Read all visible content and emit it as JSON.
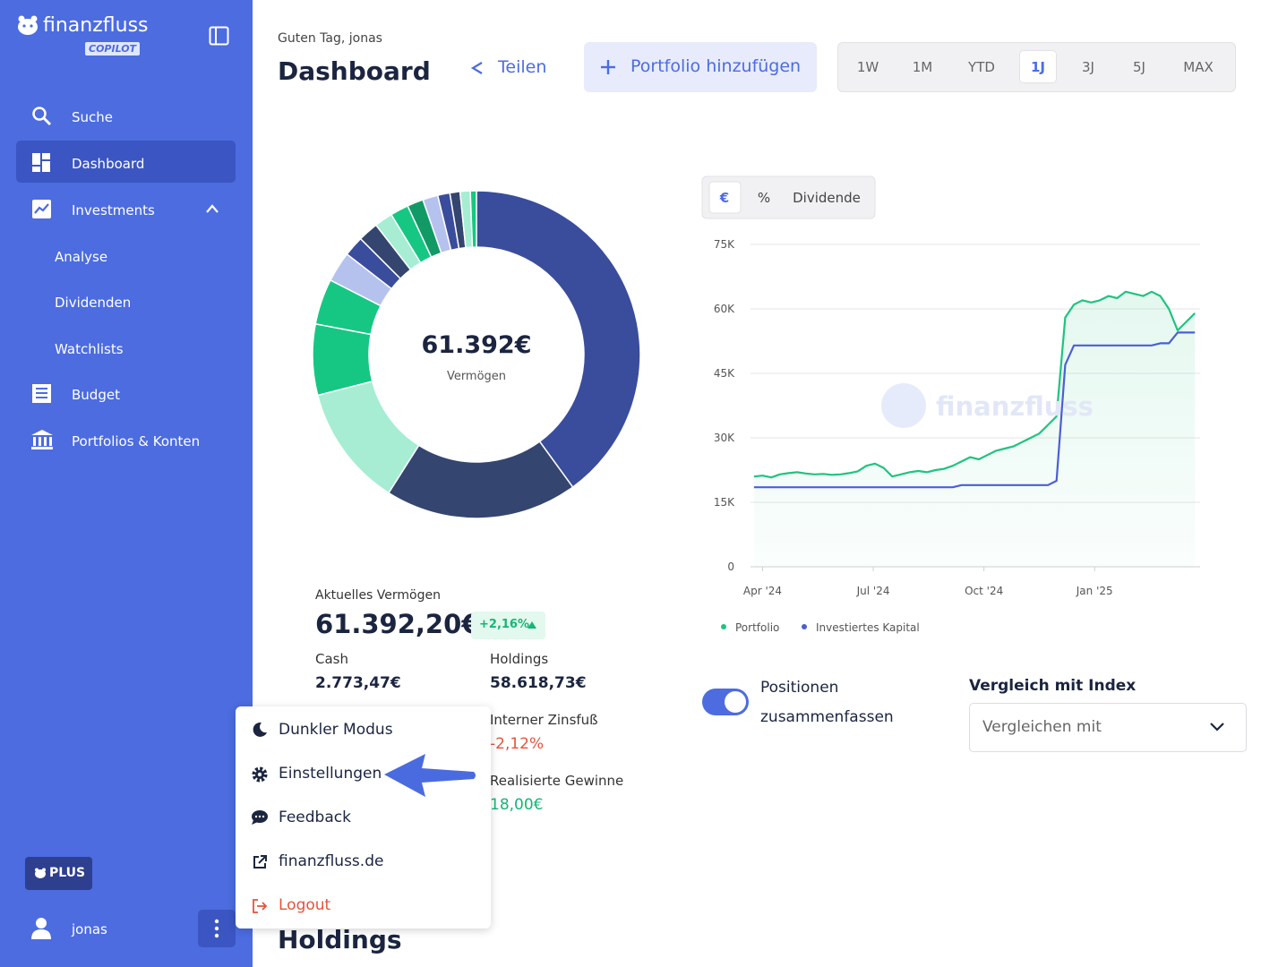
{
  "sidebar": {
    "brand": "finanzfluss",
    "badge": "COPILOT",
    "nav": [
      "Suche",
      "Dashboard",
      "Investments",
      "Analyse",
      "Dividenden",
      "Watchlists",
      "Budget",
      "Portfolios & Konten"
    ],
    "plus": "PLUS",
    "user": "jonas"
  },
  "header": {
    "greeting": "Guten Tag, jonas",
    "title": "Dashboard",
    "share": "Teilen",
    "add_portfolio": "Portfolio hinzufügen",
    "ranges": [
      "1W",
      "1M",
      "YTD",
      "1J",
      "3J",
      "5J",
      "MAX"
    ],
    "selected_range": "1J"
  },
  "chart_data": [
    {
      "type": "pie",
      "center_value": "61.392€",
      "center_label": "Vermögen",
      "values": [
        40,
        19,
        12,
        7,
        4.5,
        3,
        2,
        2,
        1.8,
        1.8,
        1.6,
        1.5,
        1.2,
        1,
        1,
        0.6
      ],
      "colors": [
        "#3a4d9c",
        "#34456f",
        "#a6edd3",
        "#16c783",
        "#16c783",
        "#b6c2ee",
        "#3a4d9c",
        "#34456f",
        "#a6edd3",
        "#16c783",
        "#129a66",
        "#b6c2ee",
        "#3a4d9c",
        "#34456f",
        "#a6edd3",
        "#16c783"
      ]
    },
    {
      "type": "line",
      "modes": [
        "€",
        "%",
        "Dividende"
      ],
      "watermark": "finanzfluss",
      "x": [
        0,
        1,
        2,
        3,
        4,
        5,
        6,
        7,
        8,
        9,
        10,
        11,
        12,
        13,
        14,
        15,
        16,
        17,
        18,
        19,
        20,
        21,
        22,
        23,
        24,
        25,
        26,
        27,
        28,
        29,
        30,
        31,
        32,
        33,
        34,
        35,
        36,
        37,
        38,
        39,
        40,
        41,
        42,
        43,
        44,
        45,
        46,
        47,
        48,
        49,
        50,
        51
      ],
      "xlim": [
        -0.4,
        51.6
      ],
      "xticks": [
        {
          "value": 1,
          "label": "Apr '24"
        },
        {
          "value": 13.8,
          "label": "Jul '24"
        },
        {
          "value": 26.6,
          "label": "Oct '24"
        },
        {
          "value": 39.4,
          "label": "Jan '25"
        }
      ],
      "ylim": [
        0,
        75
      ],
      "yticks": [
        0,
        {
          "value": 15,
          "label": "15K"
        },
        {
          "value": 30,
          "label": "30K"
        },
        {
          "value": 45,
          "label": "45K"
        },
        {
          "value": 60,
          "label": "60K"
        },
        {
          "value": 75,
          "label": "75K"
        }
      ],
      "grid": true,
      "series": [
        {
          "name": "Portfolio",
          "color": "#1fc47f",
          "values": [
            21,
            21.2,
            20.8,
            21.5,
            21.8,
            22,
            21.7,
            21.5,
            21.6,
            21.4,
            21.5,
            21.8,
            22.2,
            23.5,
            24,
            23,
            21,
            21.5,
            22,
            22.3,
            22,
            22.5,
            22.8,
            23.5,
            24.5,
            25.5,
            25,
            26,
            27,
            27.5,
            28,
            29,
            30,
            31,
            33,
            35,
            58,
            61,
            62,
            61.5,
            62,
            63,
            62.5,
            64,
            63.5,
            63,
            64,
            63,
            60,
            55,
            57,
            59
          ]
        },
        {
          "name": "Investiertes Kapital",
          "color": "#4a5fd6",
          "values": [
            18.5,
            18.5,
            18.5,
            18.5,
            18.5,
            18.5,
            18.5,
            18.5,
            18.5,
            18.5,
            18.5,
            18.5,
            18.5,
            18.5,
            18.5,
            18.5,
            18.5,
            18.5,
            18.5,
            18.5,
            18.5,
            18.5,
            18.5,
            18.5,
            19,
            19,
            19,
            19,
            19,
            19,
            19,
            19,
            19,
            19,
            19,
            20,
            47,
            51.5,
            51.5,
            51.5,
            51.5,
            51.5,
            51.5,
            51.5,
            51.5,
            51.5,
            51.5,
            52,
            52,
            54.5,
            54.5,
            54.5
          ]
        }
      ]
    }
  ],
  "summary": {
    "label": "Aktuelles Vermögen",
    "value": "61.392,20€",
    "change": "+2,16%",
    "cash_label": "Cash",
    "cash": "2.773,47€",
    "holdings_label": "Holdings",
    "holdings": "58.618,73€",
    "irr_label": "Interner Zinsfuß",
    "irr": "-2,12%",
    "realized_label": "Realisierte Gewinne",
    "realized": "18,00€"
  },
  "options": {
    "toggle_label_1": "Positionen",
    "toggle_label_2": "zusammenfassen",
    "compare_title": "Vergleich mit Index",
    "compare_placeholder": "Vergleichen mit"
  },
  "menu": {
    "items": [
      "Dunkler Modus",
      "Einstellungen",
      "Feedback",
      "finanzfluss.de",
      "Logout"
    ]
  },
  "section_title": "Holdings"
}
